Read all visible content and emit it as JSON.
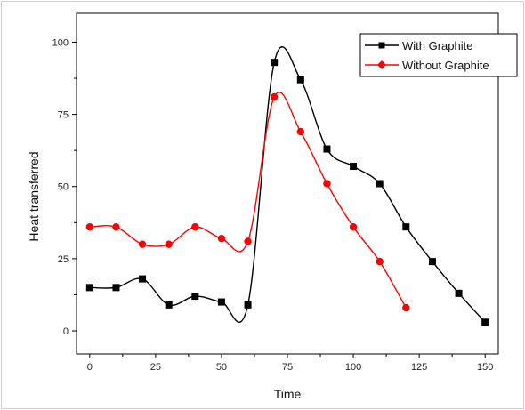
{
  "chart_data": {
    "type": "line",
    "xlabel": "Time",
    "ylabel": "Heat transferred",
    "xlim": [
      -5,
      155
    ],
    "ylim": [
      -8,
      110
    ],
    "xticks": [
      0,
      25,
      50,
      75,
      100,
      125,
      150
    ],
    "yticks": [
      0,
      25,
      50,
      75,
      100
    ],
    "xtick_labels": [
      "0",
      "25",
      "50",
      "75",
      "100",
      "125",
      "150"
    ],
    "ytick_labels": [
      "0",
      "25",
      "50",
      "75",
      "100"
    ],
    "legend_position": "top-right",
    "grid": false,
    "series": [
      {
        "name": "With Graphite",
        "color": "#000000",
        "marker": "square",
        "x": [
          0,
          10,
          20,
          30,
          40,
          50,
          60,
          70,
          80,
          90,
          100,
          110,
          120,
          130,
          140,
          150
        ],
        "y": [
          15,
          15,
          18,
          9,
          12,
          10,
          9,
          93,
          87,
          63,
          57,
          51,
          36,
          24,
          13,
          3
        ]
      },
      {
        "name": "Without Graphite",
        "color": "#ff0000",
        "marker": "diamond",
        "x": [
          0,
          10,
          20,
          30,
          40,
          50,
          60,
          70,
          80,
          90,
          100,
          110,
          120
        ],
        "y": [
          36,
          36,
          30,
          30,
          36,
          32,
          31,
          81,
          69,
          51,
          36,
          24,
          8
        ]
      }
    ]
  }
}
